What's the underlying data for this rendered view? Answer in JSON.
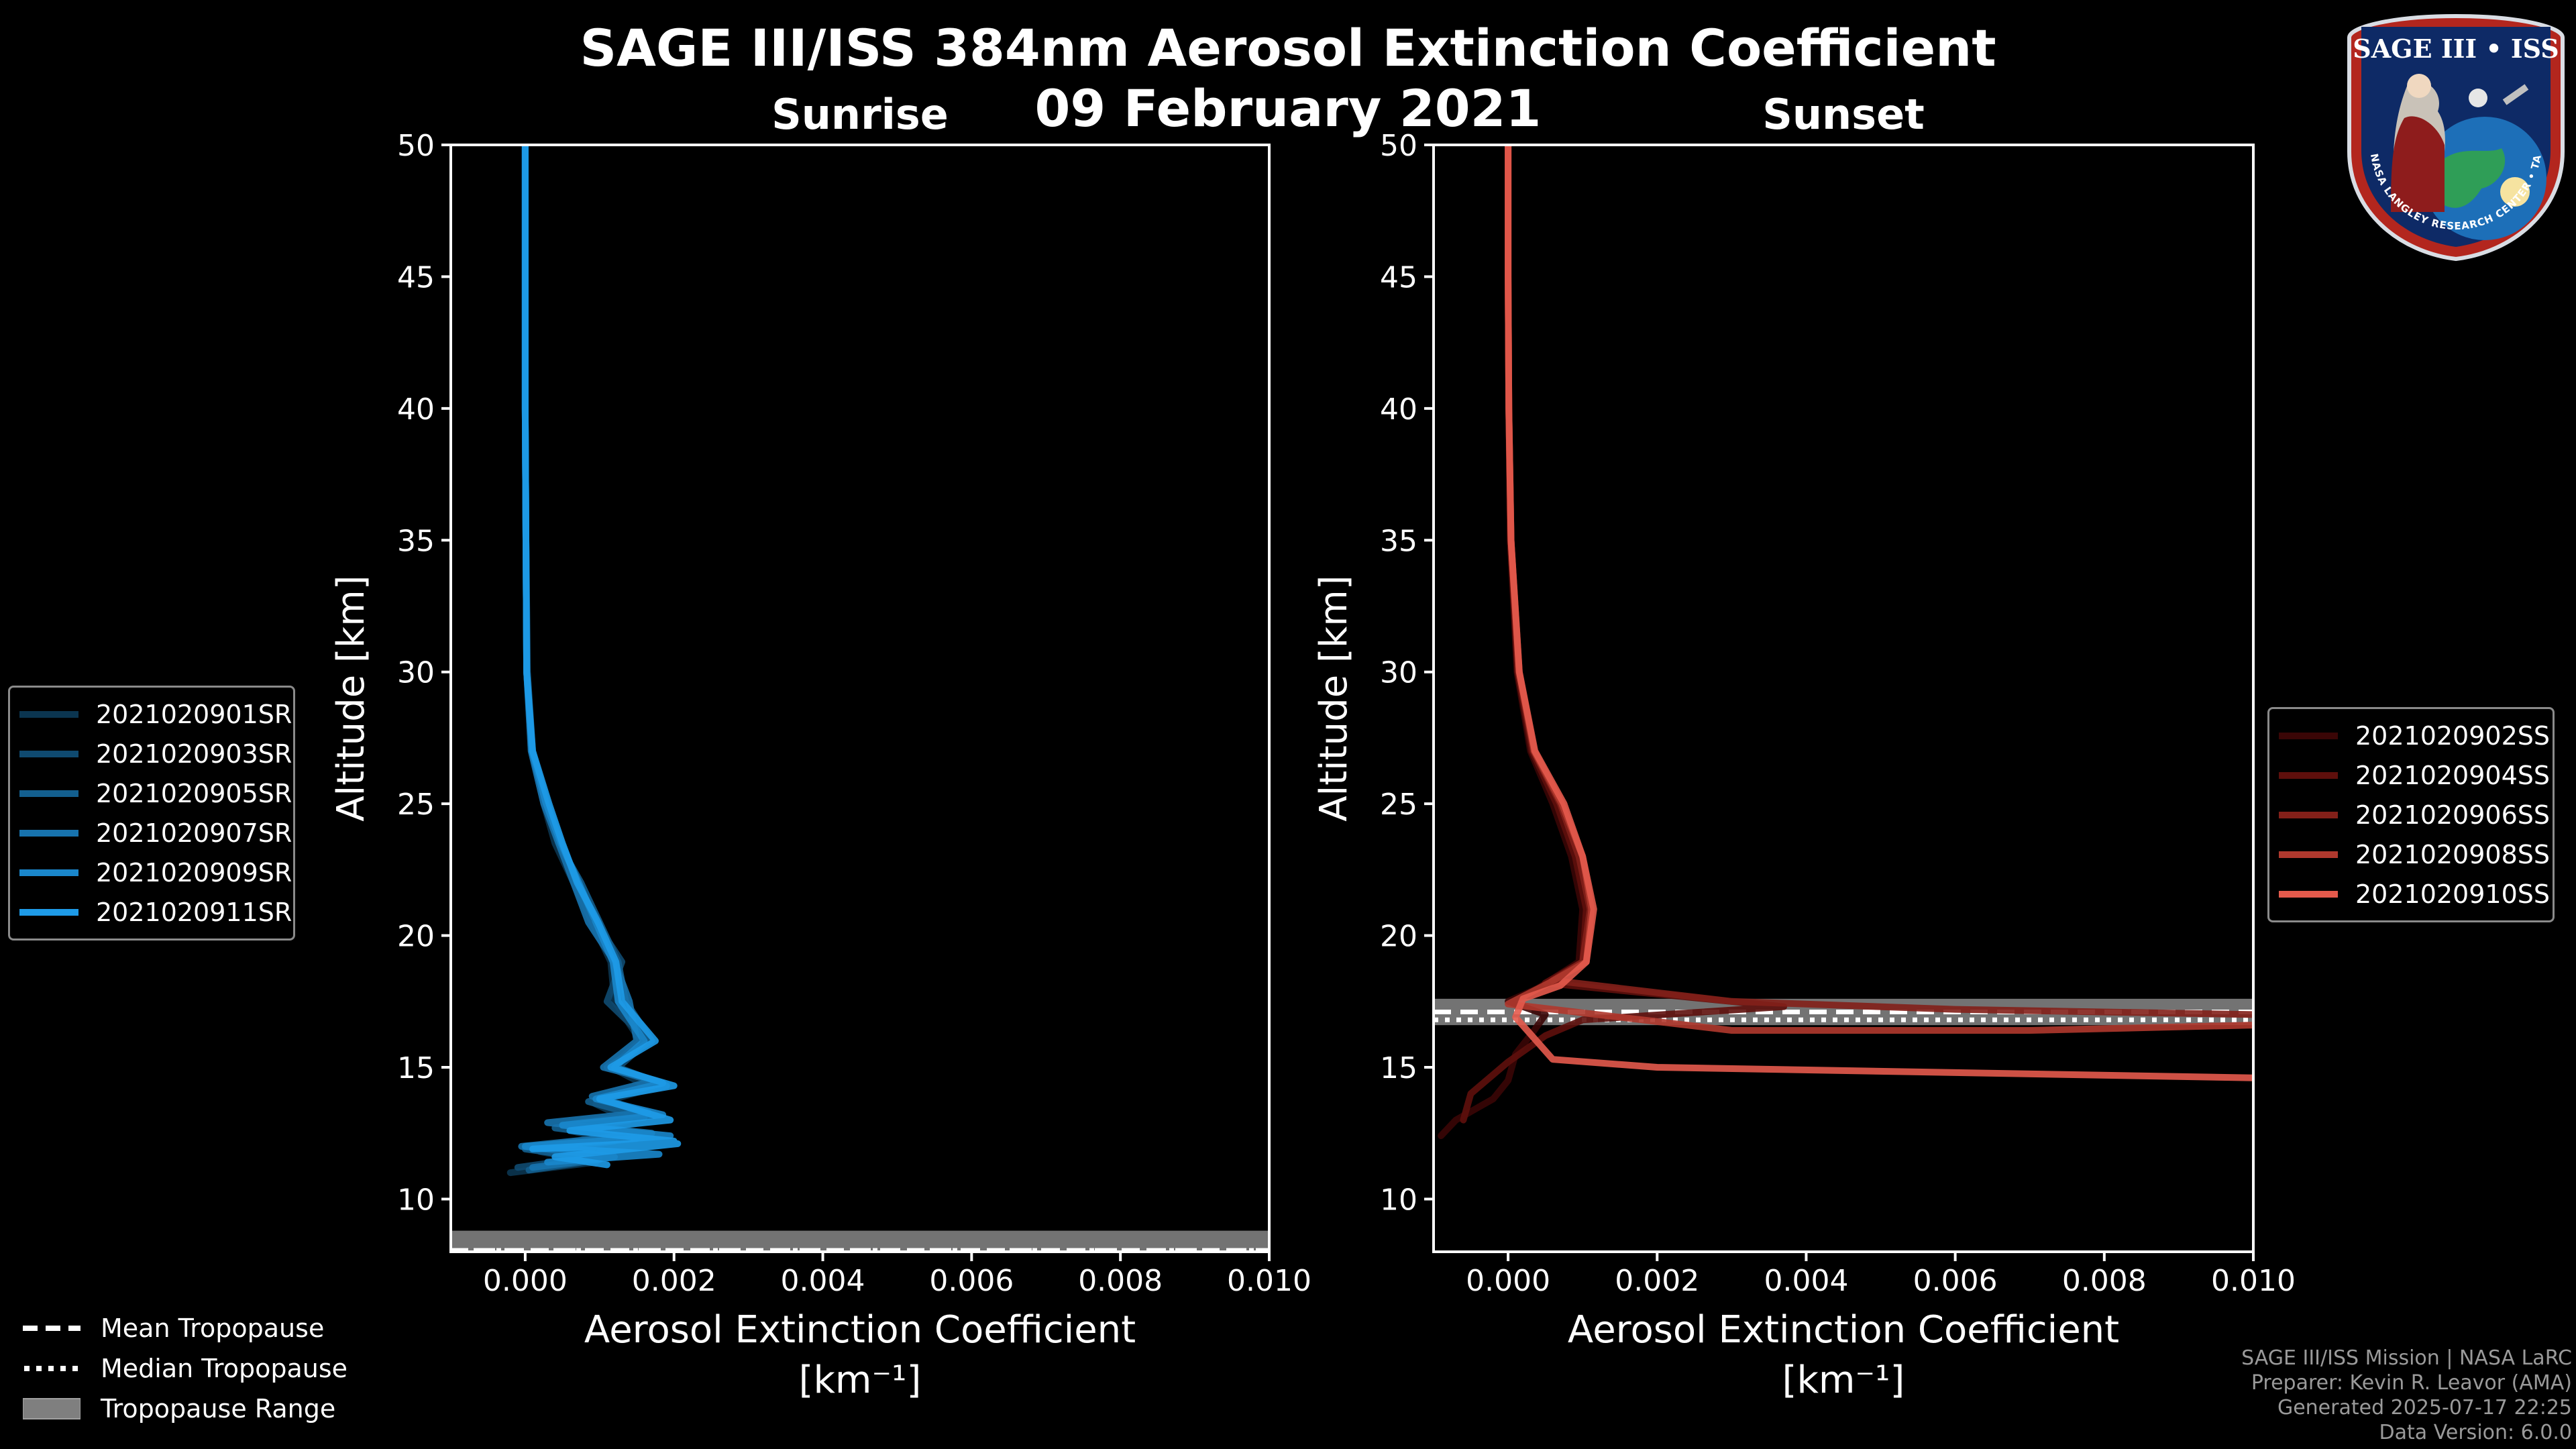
{
  "title": {
    "line1": "SAGE III/ISS 384nm Aerosol Extinction Coefficient",
    "line2": "09 February 2021"
  },
  "logo": {
    "text_main": "SAGE III • ISS",
    "text_ring": "BALL • NASA LANGLEY RESEARCH CENTER • TAS • ESA"
  },
  "colors": {
    "background": "#000000",
    "axes": "#ffffff",
    "tropopause_range": "#7f7f7f",
    "sunrise": [
      "#0b3550",
      "#0f4a70",
      "#135f8f",
      "#1773ae",
      "#1a87cc",
      "#1e9be8"
    ],
    "sunset": [
      "#3a0606",
      "#5e0f0c",
      "#832019",
      "#b0392e",
      "#e45a4c"
    ]
  },
  "tropopause_legend": {
    "mean": "Mean Tropopause",
    "median": "Median Tropopause",
    "range": "Tropopause Range"
  },
  "credits": {
    "line1": "SAGE III/ISS Mission | NASA LaRC",
    "line2": "Preparer: Kevin R. Leavor (AMA)",
    "line3": "Generated 2025-07-17 22:25",
    "line4": "Data Version: 6.0.0"
  },
  "chart_data": [
    {
      "type": "line",
      "subtitle": "Sunrise",
      "xlabel": "Aerosol Extinction Coefficient",
      "xlabel_units": "[km⁻¹]",
      "ylabel": "Altitude [km]",
      "xlim": [
        -0.001,
        0.01
      ],
      "ylim": [
        8,
        50
      ],
      "xticks": [
        0.0,
        0.002,
        0.004,
        0.006,
        0.008,
        0.01
      ],
      "xtick_labels": [
        "0.000",
        "0.002",
        "0.004",
        "0.006",
        "0.008",
        "0.010"
      ],
      "yticks": [
        10,
        15,
        20,
        25,
        30,
        35,
        40,
        45,
        50
      ],
      "tropopause": {
        "range": [
          8.0,
          8.8
        ],
        "mean": 8.05,
        "median": 8.05
      },
      "series": [
        {
          "name": "2021020901SR",
          "x": [
            0.0,
            0.0,
            0.0,
            1e-05,
            2e-05,
            8e-05,
            0.00025,
            0.0004,
            0.00065,
            0.0009,
            0.00115,
            0.0012,
            0.00155,
            0.00115,
            0.0017,
            0.00095,
            0.0014,
            0.0006,
            0.0012,
            0.0002,
            0.00095,
            -0.0002
          ],
          "y": [
            50,
            45,
            40,
            35,
            30,
            27,
            25,
            23.5,
            22,
            20.5,
            19,
            17.5,
            16,
            15,
            14.2,
            13.6,
            13,
            12.6,
            12.2,
            11.8,
            11.4,
            11.0
          ]
        },
        {
          "name": "2021020903SR",
          "x": [
            0.0,
            0.0,
            0.0,
            1e-05,
            2e-05,
            9e-05,
            0.0003,
            0.0005,
            0.0007,
            0.00095,
            0.0013,
            0.0011,
            0.00165,
            0.00125,
            0.0018,
            0.001,
            0.0015,
            0.0005,
            0.0013,
            0.0001,
            0.0009,
            -0.0001
          ],
          "y": [
            50,
            45,
            40,
            35,
            30,
            27,
            25,
            23.5,
            22,
            20.5,
            19,
            17.5,
            16,
            15,
            14.4,
            13.8,
            13.2,
            12.8,
            12.4,
            12.0,
            11.6,
            11.2
          ]
        },
        {
          "name": "2021020905SR",
          "x": [
            0.0,
            0.0,
            0.0,
            1e-05,
            3e-05,
            0.0001,
            0.0003,
            0.00045,
            0.00075,
            0.001,
            0.00125,
            0.00135,
            0.0017,
            0.0011,
            0.0019,
            0.00085,
            0.0016,
            0.0004,
            0.0015,
            0.0,
            0.001,
            5e-05
          ],
          "y": [
            50,
            45,
            40,
            35,
            30,
            27,
            25,
            23.5,
            22,
            20.5,
            19,
            17.5,
            16,
            15,
            14.3,
            13.7,
            13.1,
            12.7,
            12.3,
            11.9,
            11.5,
            11.1
          ]
        },
        {
          "name": "2021020907SR",
          "x": [
            0.0,
            0.0,
            0.0,
            1e-05,
            2e-05,
            8e-05,
            0.00025,
            0.00045,
            0.00065,
            0.00085,
            0.0012,
            0.0014,
            0.0015,
            0.00105,
            0.00175,
            0.0009,
            0.00165,
            0.0003,
            0.0017,
            -5e-05,
            0.0012,
            0.0001
          ],
          "y": [
            50,
            45,
            40,
            35,
            30,
            27,
            25,
            23.5,
            22,
            20.5,
            19,
            17.5,
            16,
            15,
            14.5,
            13.9,
            13.3,
            12.9,
            12.5,
            12.0,
            11.6,
            11.2
          ]
        },
        {
          "name": "2021020909SR",
          "x": [
            0.0,
            0.0,
            0.0,
            1e-05,
            2e-05,
            9e-05,
            0.00028,
            0.00048,
            0.00072,
            0.00095,
            0.00118,
            0.00125,
            0.0016,
            0.0012,
            0.00185,
            0.00095,
            0.00185,
            0.0005,
            0.00195,
            0.0,
            0.0018,
            0.0003
          ],
          "y": [
            50,
            45,
            40,
            35,
            30,
            27,
            25,
            23.5,
            22,
            20.5,
            19,
            17.5,
            16,
            15,
            14.4,
            13.8,
            13.2,
            12.8,
            12.4,
            12.0,
            11.7,
            11.4
          ]
        },
        {
          "name": "2021020911SR",
          "x": [
            0.0,
            0.0,
            0.0,
            1e-05,
            2e-05,
            0.0001,
            0.00032,
            0.0005,
            0.0007,
            0.00098,
            0.00122,
            0.0013,
            0.00175,
            0.00115,
            0.002,
            0.001,
            0.00195,
            0.0006,
            0.002,
            0.0001,
            0.00205,
            0.0004,
            0.0011
          ],
          "y": [
            50,
            45,
            40,
            35,
            30,
            27,
            25,
            23.5,
            22,
            20.5,
            19,
            17.5,
            16,
            15,
            14.3,
            13.8,
            13.0,
            12.6,
            12.2,
            11.9,
            12.1,
            11.6,
            11.3
          ]
        }
      ]
    },
    {
      "type": "line",
      "subtitle": "Sunset",
      "xlabel": "Aerosol Extinction Coefficient",
      "xlabel_units": "[km⁻¹]",
      "ylabel": "Altitude [km]",
      "xlim": [
        -0.001,
        0.01
      ],
      "ylim": [
        8,
        50
      ],
      "xticks": [
        0.0,
        0.002,
        0.004,
        0.006,
        0.008,
        0.01
      ],
      "xtick_labels": [
        "0.000",
        "0.002",
        "0.004",
        "0.006",
        "0.008",
        "0.010"
      ],
      "yticks": [
        10,
        15,
        20,
        25,
        30,
        35,
        40,
        45,
        50
      ],
      "tropopause": {
        "range": [
          16.6,
          17.6
        ],
        "mean": 17.1,
        "median": 16.8
      },
      "series": [
        {
          "name": "2021020902SS",
          "x": [
            0.0,
            0.0,
            1e-05,
            3e-05,
            0.00012,
            0.0003,
            0.0006,
            0.00085,
            0.001,
            0.00095,
            0.0004,
            0.0,
            0.0005,
            0.00035,
            0.0001,
            0.0,
            -0.0002,
            -0.0007,
            -0.0009
          ],
          "y": [
            50,
            45,
            40,
            35,
            30,
            27,
            25,
            23,
            21,
            19,
            18,
            17.5,
            17,
            16.4,
            15.5,
            14.5,
            13.8,
            13.0,
            12.4
          ]
        },
        {
          "name": "2021020904SS",
          "x": [
            0.0,
            0.0,
            1e-05,
            3e-05,
            0.00013,
            0.00032,
            0.00065,
            0.0009,
            0.00105,
            0.001,
            0.0005,
            0.0037,
            0.001,
            0.0005,
            0.0,
            -0.0005,
            -0.0006
          ],
          "y": [
            50,
            45,
            40,
            35,
            30,
            27,
            25,
            23,
            21,
            19,
            18.2,
            17.3,
            16.8,
            16.2,
            15.2,
            14.0,
            13.0
          ]
        },
        {
          "name": "2021020906SS",
          "x": [
            0.0,
            0.0,
            1e-05,
            4e-05,
            0.00014,
            0.00034,
            0.0007,
            0.00095,
            0.0011,
            0.001,
            0.0006,
            0.003,
            0.006,
            0.01
          ],
          "y": [
            50,
            45,
            40,
            35,
            30,
            27,
            25,
            23,
            21,
            19,
            18.3,
            17.5,
            17.2,
            17.0
          ]
        },
        {
          "name": "2021020908SS",
          "x": [
            0.0,
            0.0,
            1e-05,
            4e-05,
            0.00015,
            0.00035,
            0.00072,
            0.001,
            0.00112,
            0.00105,
            0.00055,
            0.0,
            0.003,
            0.007,
            0.01
          ],
          "y": [
            50,
            45,
            40,
            35,
            30,
            27,
            25,
            23,
            21,
            19,
            18.2,
            17.4,
            16.4,
            16.4,
            16.6
          ]
        },
        {
          "name": "2021020910SS",
          "x": [
            0.0,
            0.0,
            1e-05,
            4e-05,
            0.00015,
            0.00036,
            0.00075,
            0.001,
            0.00115,
            0.00105,
            0.0007,
            0.0002,
            0.0001,
            0.0006,
            0.002,
            0.006,
            0.01
          ],
          "y": [
            50,
            45,
            40,
            35,
            30,
            27,
            25,
            23,
            21,
            19,
            18.1,
            17.6,
            16.9,
            15.3,
            15.0,
            14.8,
            14.6
          ]
        }
      ]
    }
  ]
}
